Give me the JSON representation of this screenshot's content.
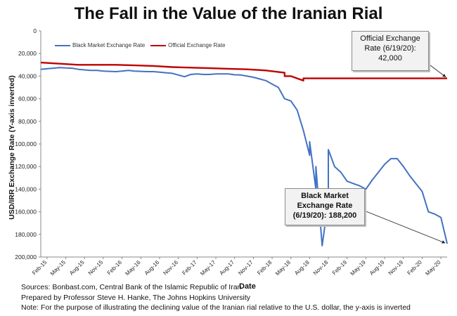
{
  "title": "The Fall in the Value of the Iranian Rial",
  "ylabel": "USD/IRR Exchange Rate (Y-axis inverted)",
  "xlabel": "Date",
  "notes": [
    "Sources: Bonbast.com, Central Bank of the Islamic Republic of Iran",
    "Prepared by Professor Steve H. Hanke, The Johns Hopkins University",
    "Note: For the purpose of illustrating the declining value of the Iranian rial relative to the U.S. dollar, the y-axis is inverted"
  ],
  "legend": {
    "black_market": "Black Market Exchange Rate",
    "official": "Official Exchange Rate"
  },
  "callouts": {
    "official": [
      "Official Exchange",
      "Rate (6/19/20):",
      "42,000"
    ],
    "black_market": [
      "Black Market",
      "Exchange Rate",
      "(6/19/20): 188,200"
    ]
  },
  "colors": {
    "black_market": "#4472c4",
    "official": "#c00000"
  },
  "chart_data": {
    "type": "line",
    "title": "The Fall in the Value of the Iranian Rial",
    "xlabel": "Date",
    "ylabel": "USD/IRR Exchange Rate (Y-axis inverted)",
    "y_inverted": true,
    "ylim": [
      0,
      200000
    ],
    "y_ticks": [
      0,
      20000,
      40000,
      60000,
      80000,
      100000,
      120000,
      140000,
      160000,
      180000,
      200000
    ],
    "y_tick_labels": [
      "0",
      "20,000",
      "40,000",
      "60,000",
      "80,000",
      "100,000",
      "120,000",
      "140,000",
      "160,000",
      "180,000",
      "200,000"
    ],
    "x_tick_labels": [
      "Feb-15",
      "May-15",
      "Aug-15",
      "Nov-15",
      "Feb-16",
      "May-16",
      "Aug-16",
      "Nov-16",
      "Feb-17",
      "May-17",
      "Aug-17",
      "Nov-17",
      "Feb-18",
      "May-18",
      "Aug-18",
      "Nov-18",
      "Feb-19",
      "May-19",
      "Aug-19",
      "Nov-19",
      "Feb-20",
      "May-20"
    ],
    "legend_position": "top-left",
    "grid": false,
    "series": [
      {
        "name": "Black Market Exchange Rate",
        "x": [
          "Jan-15",
          "Feb-15",
          "Mar-15",
          "Apr-15",
          "May-15",
          "Jun-15",
          "Jul-15",
          "Aug-15",
          "Sep-15",
          "Oct-15",
          "Nov-15",
          "Dec-15",
          "Jan-16",
          "Feb-16",
          "Mar-16",
          "Apr-16",
          "May-16",
          "Jun-16",
          "Jul-16",
          "Aug-16",
          "Sep-16",
          "Oct-16",
          "Nov-16",
          "Dec-16",
          "Jan-17",
          "Feb-17",
          "Mar-17",
          "Apr-17",
          "May-17",
          "Jun-17",
          "Jul-17",
          "Aug-17",
          "Sep-17",
          "Oct-17",
          "Nov-17",
          "Dec-17",
          "Jan-18",
          "Feb-18",
          "Mar-18",
          "Apr-18",
          "May-18",
          "Jun-18",
          "Jul-18",
          "Aug-18",
          "Aug-18",
          "Sep-18",
          "Sep-18",
          "Oct-18",
          "Nov-18",
          "Nov-18",
          "Dec-18",
          "Jan-19",
          "Feb-19",
          "Mar-19",
          "Apr-19",
          "May-19",
          "Jun-19",
          "Jul-19",
          "Aug-19",
          "Sep-19",
          "Oct-19",
          "Nov-19",
          "Dec-19",
          "Jan-20",
          "Feb-20",
          "Mar-20",
          "Apr-20",
          "May-20",
          "Jun-20"
        ],
        "values": [
          34000,
          33500,
          33000,
          32500,
          32800,
          33000,
          34000,
          34500,
          35000,
          35000,
          35500,
          35800,
          36000,
          35500,
          35000,
          35500,
          35800,
          36000,
          36000,
          36500,
          37000,
          37500,
          39000,
          40500,
          38500,
          38000,
          38500,
          38500,
          38000,
          38000,
          38000,
          38800,
          39000,
          40000,
          41000,
          42500,
          44000,
          47000,
          50000,
          60000,
          62000,
          70000,
          88000,
          110000,
          98000,
          140000,
          120000,
          190000,
          150000,
          105000,
          120000,
          125000,
          133000,
          135000,
          137000,
          140000,
          132000,
          125000,
          118000,
          113000,
          113000,
          120000,
          128000,
          135000,
          142000,
          160000,
          162000,
          165000,
          188200
        ]
      },
      {
        "name": "Official Exchange Rate",
        "x": [
          "Jan-15",
          "Apr-15",
          "Jul-15",
          "Oct-15",
          "Jan-16",
          "Apr-16",
          "Jul-16",
          "Oct-16",
          "Jan-17",
          "Apr-17",
          "Jul-17",
          "Oct-17",
          "Jan-18",
          "Apr-18",
          "Apr-18",
          "May-18",
          "Jun-18",
          "Jul-18",
          "Jul-18",
          "Jun-20"
        ],
        "values": [
          28000,
          29000,
          30000,
          30000,
          30000,
          30500,
          31000,
          32000,
          32500,
          33000,
          33500,
          34000,
          35000,
          37000,
          40000,
          40000,
          42000,
          44000,
          42000,
          42000
        ]
      }
    ]
  }
}
